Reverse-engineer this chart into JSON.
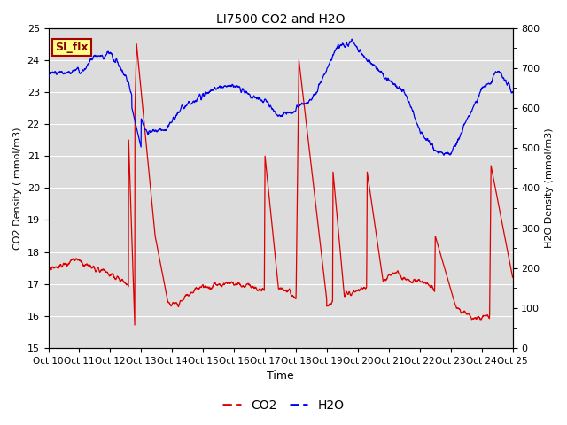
{
  "title": "LI7500 CO2 and H2O",
  "xlabel": "Time",
  "ylabel_left": "CO2 Density ( mmol/m3)",
  "ylabel_right": "H2O Density (mmol/m3)",
  "ylim_left": [
    15.0,
    25.0
  ],
  "ylim_right": [
    0,
    800
  ],
  "yticks_left": [
    15.0,
    16.0,
    17.0,
    18.0,
    19.0,
    20.0,
    21.0,
    22.0,
    23.0,
    24.0,
    25.0
  ],
  "yticks_right": [
    0,
    100,
    200,
    300,
    400,
    500,
    600,
    700,
    800
  ],
  "xtick_labels": [
    "Oct 10",
    "Oct 11",
    "Oct 12",
    "Oct 13",
    "Oct 14",
    "Oct 15",
    "Oct 16",
    "Oct 17",
    "Oct 18",
    "Oct 19",
    "Oct 20",
    "Oct 21",
    "Oct 22",
    "Oct 23",
    "Oct 24",
    "Oct 25"
  ],
  "co2_color": "#DD0000",
  "h2o_color": "#0000EE",
  "plot_bg_color": "#DCDCDC",
  "annotation_text": "SI_flx",
  "annotation_bg": "#FFFF88",
  "annotation_edge": "#AA0000",
  "legend_co2": "CO2",
  "legend_h2o": "H2O",
  "n_points": 2000,
  "seed": 7
}
